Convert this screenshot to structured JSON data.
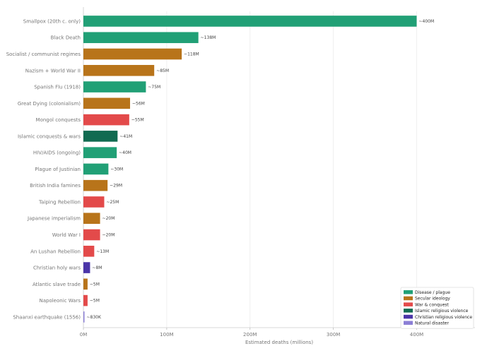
{
  "chart_data": {
    "type": "bar",
    "orientation": "horizontal",
    "title": "",
    "xlabel": "Estimated deaths (millions)",
    "ylabel": "",
    "xlim": [
      0,
      470
    ],
    "x_ticks": [
      {
        "value": 0,
        "label": "0M"
      },
      {
        "value": 100,
        "label": "100M"
      },
      {
        "value": 200,
        "label": "200M"
      },
      {
        "value": 300,
        "label": "300M"
      },
      {
        "value": 400,
        "label": "400M"
      }
    ],
    "grid": "vertical",
    "legend_position": "bottom-right",
    "legend": [
      {
        "key": "disease",
        "label": "Disease / plague",
        "color": "#21a076"
      },
      {
        "key": "secular",
        "label": "Secular ideology",
        "color": "#b8741a"
      },
      {
        "key": "war",
        "label": "War & conquest",
        "color": "#e34a4a"
      },
      {
        "key": "islamic",
        "label": "Islamic religious violence",
        "color": "#116b51"
      },
      {
        "key": "christian",
        "label": "Christian religious violence",
        "color": "#4b35a8"
      },
      {
        "key": "natural",
        "label": "Natural disaster",
        "color": "#8b7fd6"
      }
    ],
    "bars": [
      {
        "category": "Smallpox (20th c. only)",
        "value": 400,
        "label": "~400M",
        "group": "disease"
      },
      {
        "category": "Black Death",
        "value": 138,
        "label": "~138M",
        "group": "disease"
      },
      {
        "category": "Socialist / communist regimes",
        "value": 118,
        "label": "~118M",
        "group": "secular"
      },
      {
        "category": "Nazism + World War II",
        "value": 85,
        "label": "~85M",
        "group": "secular"
      },
      {
        "category": "Spanish Flu (1918)",
        "value": 75,
        "label": "~75M",
        "group": "disease"
      },
      {
        "category": "Great Dying (colonialism)",
        "value": 56,
        "label": "~56M",
        "group": "secular"
      },
      {
        "category": "Mongol conquests",
        "value": 55,
        "label": "~55M",
        "group": "war"
      },
      {
        "category": "Islamic conquests & wars",
        "value": 41,
        "label": "~41M",
        "group": "islamic"
      },
      {
        "category": "HIV/AIDS (ongoing)",
        "value": 40,
        "label": "~40M",
        "group": "disease"
      },
      {
        "category": "Plague of Justinian",
        "value": 30,
        "label": "~30M",
        "group": "disease"
      },
      {
        "category": "British India famines",
        "value": 29,
        "label": "~29M",
        "group": "secular"
      },
      {
        "category": "Taiping Rebellion",
        "value": 25,
        "label": "~25M",
        "group": "war"
      },
      {
        "category": "Japanese imperialism",
        "value": 20,
        "label": "~20M",
        "group": "secular"
      },
      {
        "category": "World War I",
        "value": 20,
        "label": "~20M",
        "group": "war"
      },
      {
        "category": "An Lushan Rebellion",
        "value": 13,
        "label": "~13M",
        "group": "war"
      },
      {
        "category": "Christian holy wars",
        "value": 8,
        "label": "~8M",
        "group": "christian"
      },
      {
        "category": "Atlantic slave trade",
        "value": 5,
        "label": "~5M",
        "group": "secular"
      },
      {
        "category": "Napoleonic Wars",
        "value": 5,
        "label": "~5M",
        "group": "war"
      },
      {
        "category": "Shaanxi earthquake (1556)",
        "value": 0.83,
        "label": "~830K",
        "group": "natural"
      }
    ]
  }
}
